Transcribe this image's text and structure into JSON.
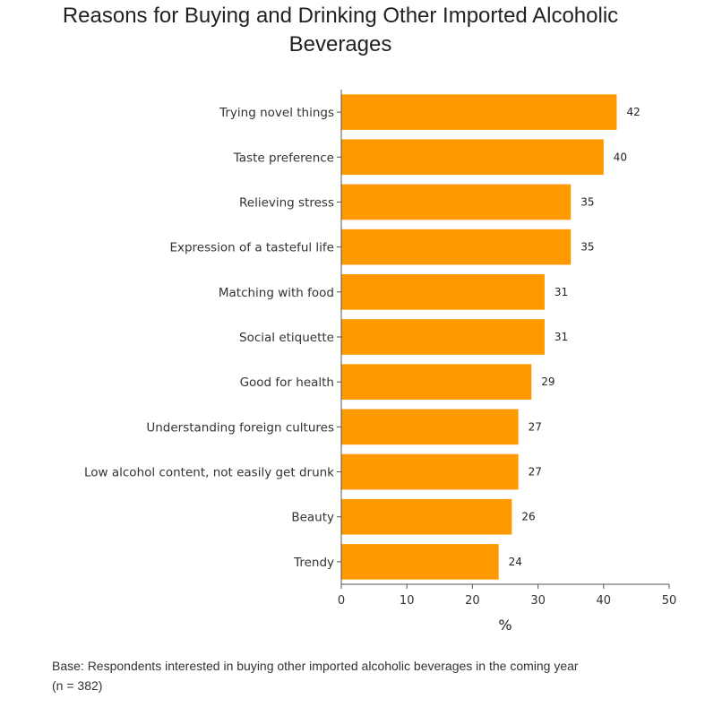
{
  "chart_data": {
    "type": "bar",
    "orientation": "horizontal",
    "title": "Reasons for Buying and Drinking Other Imported Alcoholic\nBeverages",
    "xlabel": "%",
    "ylabel": "",
    "xlim": [
      0,
      50
    ],
    "ticks": [
      0,
      10,
      20,
      30,
      40,
      50
    ],
    "grid": false,
    "bar_color": "#FF9900",
    "categories": [
      "Trying novel things",
      "Taste preference",
      "Relieving stress",
      "Expression of a tasteful life",
      "Matching with food",
      "Social etiquette",
      "Good for health",
      "Understanding foreign cultures",
      "Low alcohol content, not easily get drunk",
      "Beauty",
      "Trendy"
    ],
    "values": [
      42,
      40,
      35,
      35,
      31,
      31,
      29,
      27,
      27,
      26,
      24
    ]
  },
  "footnote": "Base: Respondents interested in buying other imported alcoholic beverages in the coming year\n(n = 382)"
}
